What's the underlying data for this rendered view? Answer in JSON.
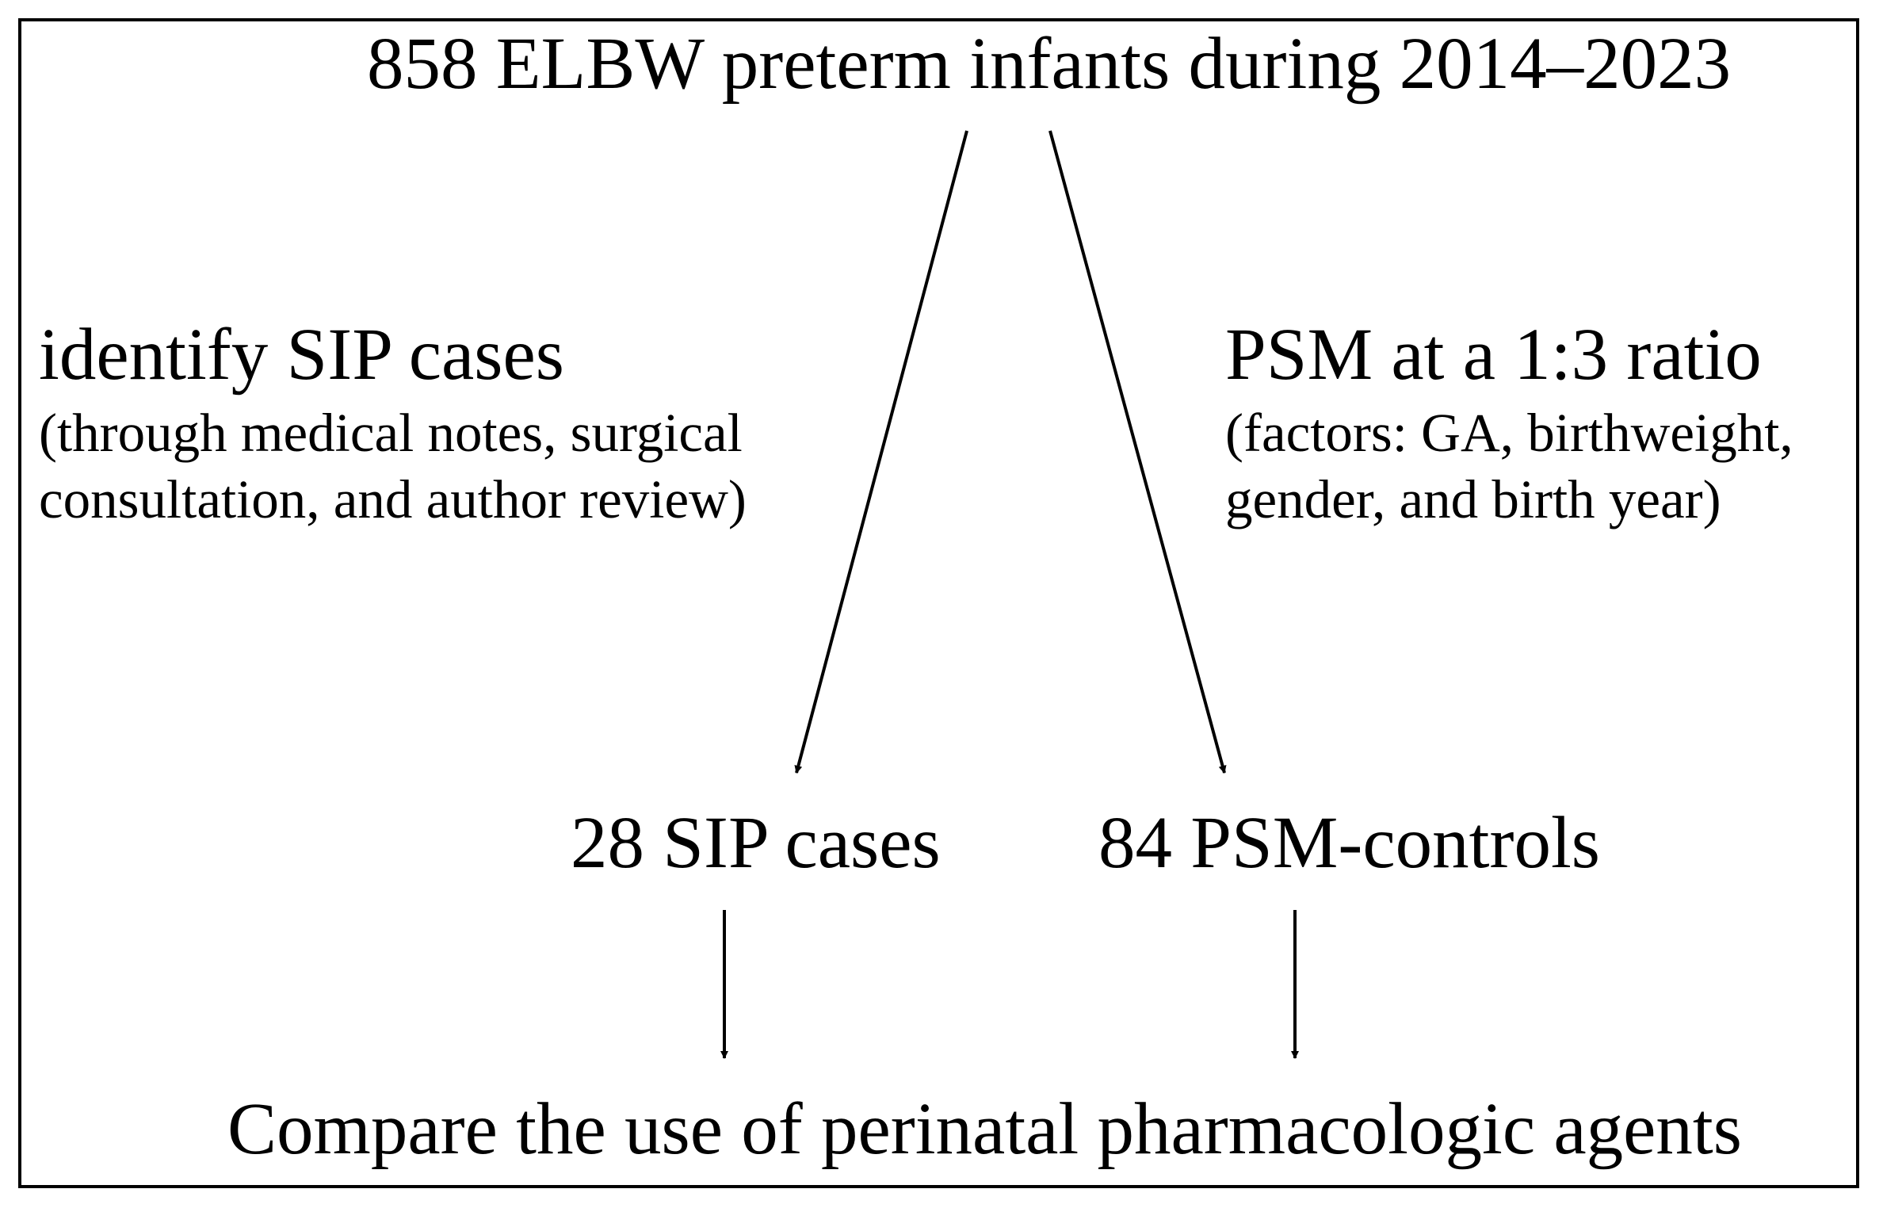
{
  "diagram": {
    "top_node": "858 ELBW preterm infants during 2014–2023",
    "left_branch": {
      "heading": "identify SIP cases",
      "detail_line1": "(through medical notes, surgical",
      "detail_line2": "consultation, and author review)"
    },
    "right_branch": {
      "heading": "PSM at a 1:3 ratio",
      "detail_line1": "(factors: GA, birthweight,",
      "detail_line2": "gender, and birth year)"
    },
    "left_result": "28 SIP cases",
    "right_result": "84 PSM-controls",
    "bottom_node": "Compare the use of perinatal pharmacologic agents"
  },
  "colors": {
    "line": "#000000",
    "background": "#ffffff"
  }
}
